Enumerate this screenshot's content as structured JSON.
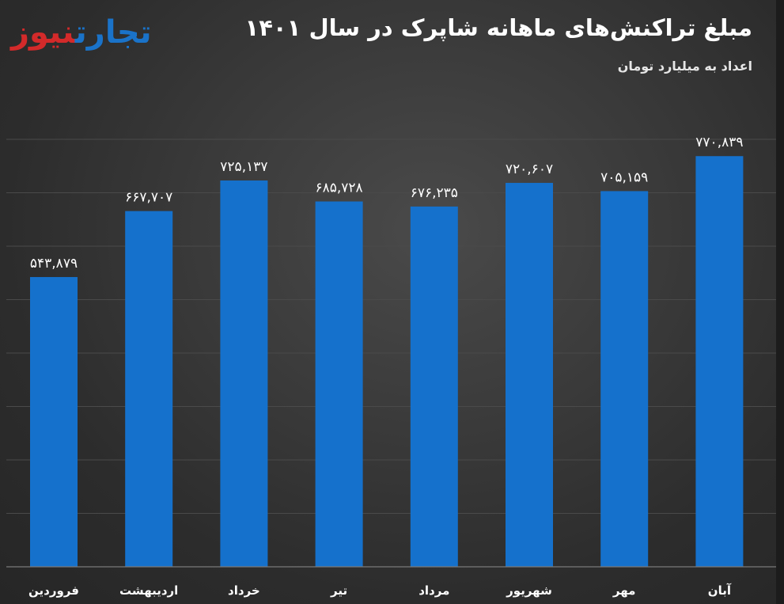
{
  "header": {
    "title": "مبلغ تراکنش‌های ماهانه شاپرک در سال ۱۴۰۱",
    "subtitle": "اعداد به میلیارد تومان",
    "logo_part1": "تجارت",
    "logo_part2": "نیوز"
  },
  "colors": {
    "bar": "#1571cc",
    "background": "#2c2c2c",
    "logo_blue": "#1a73c9",
    "logo_red": "#d32a2a"
  },
  "chart_data": {
    "type": "bar",
    "title": "مبلغ تراکنش‌های ماهانه شاپرک در سال ۱۴۰۱",
    "subtitle": "اعداد به میلیارد تومان",
    "categories": [
      "فروردین",
      "اردیبهشت",
      "خرداد",
      "تیر",
      "مرداد",
      "شهریور",
      "مهر",
      "آبان"
    ],
    "values": [
      543879,
      667707,
      725137,
      685728,
      676235,
      720607,
      705159,
      770839
    ],
    "value_labels": [
      "۵۴۳,۸۷۹",
      "۶۶۷,۷۰۷",
      "۷۲۵,۱۳۷",
      "۶۸۵,۷۲۸",
      "۶۷۶,۲۳۵",
      "۷۲۰,۶۰۷",
      "۷۰۵,۱۵۹",
      "۷۷۰,۸۳۹"
    ],
    "ylim": [
      0,
      900000
    ],
    "grid": true,
    "legend": "none"
  }
}
